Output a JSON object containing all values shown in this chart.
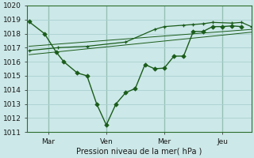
{
  "background_color": "#cce8e8",
  "grid_color": "#aad0d0",
  "line_color": "#1a5c1a",
  "title": "Pression niveau de la mer( hPa )",
  "ylim": [
    1011,
    1020
  ],
  "yticks": [
    1011,
    1012,
    1013,
    1014,
    1015,
    1016,
    1017,
    1018,
    1019,
    1020
  ],
  "x_tick_labels": [
    "Mar",
    "Ven",
    "Mer",
    "Jeu"
  ],
  "x_tick_positions": [
    1,
    4,
    7,
    10
  ],
  "xlim": [
    -0.1,
    11.5
  ],
  "series1_x": [
    0.0,
    0.8,
    1.4,
    1.8,
    2.5,
    3.0,
    3.5,
    4.0,
    4.5,
    5.0,
    5.5,
    6.0,
    6.5,
    7.0,
    7.5,
    8.0,
    8.5,
    9.0,
    9.5,
    10.0,
    10.5,
    11.0
  ],
  "series1_y": [
    1018.85,
    1018.0,
    1016.7,
    1016.0,
    1015.2,
    1015.0,
    1013.0,
    1011.5,
    1013.0,
    1013.8,
    1014.1,
    1015.8,
    1015.5,
    1015.55,
    1016.4,
    1016.4,
    1018.15,
    1018.15,
    1018.5,
    1018.5,
    1018.55,
    1018.5
  ],
  "series2_x": [
    0.0,
    1.5,
    3.0,
    5.0,
    6.5,
    7.0,
    8.0,
    8.5,
    9.0,
    9.5,
    10.5,
    11.0,
    11.5
  ],
  "series2_y": [
    1016.8,
    1017.0,
    1017.1,
    1017.4,
    1018.3,
    1018.5,
    1018.6,
    1018.65,
    1018.7,
    1018.8,
    1018.75,
    1018.8,
    1018.5
  ],
  "series3_x": [
    0.0,
    11.5
  ],
  "series3_y": [
    1016.5,
    1018.1
  ],
  "series4_x": [
    0.0,
    11.5
  ],
  "series4_y": [
    1017.1,
    1018.3
  ]
}
